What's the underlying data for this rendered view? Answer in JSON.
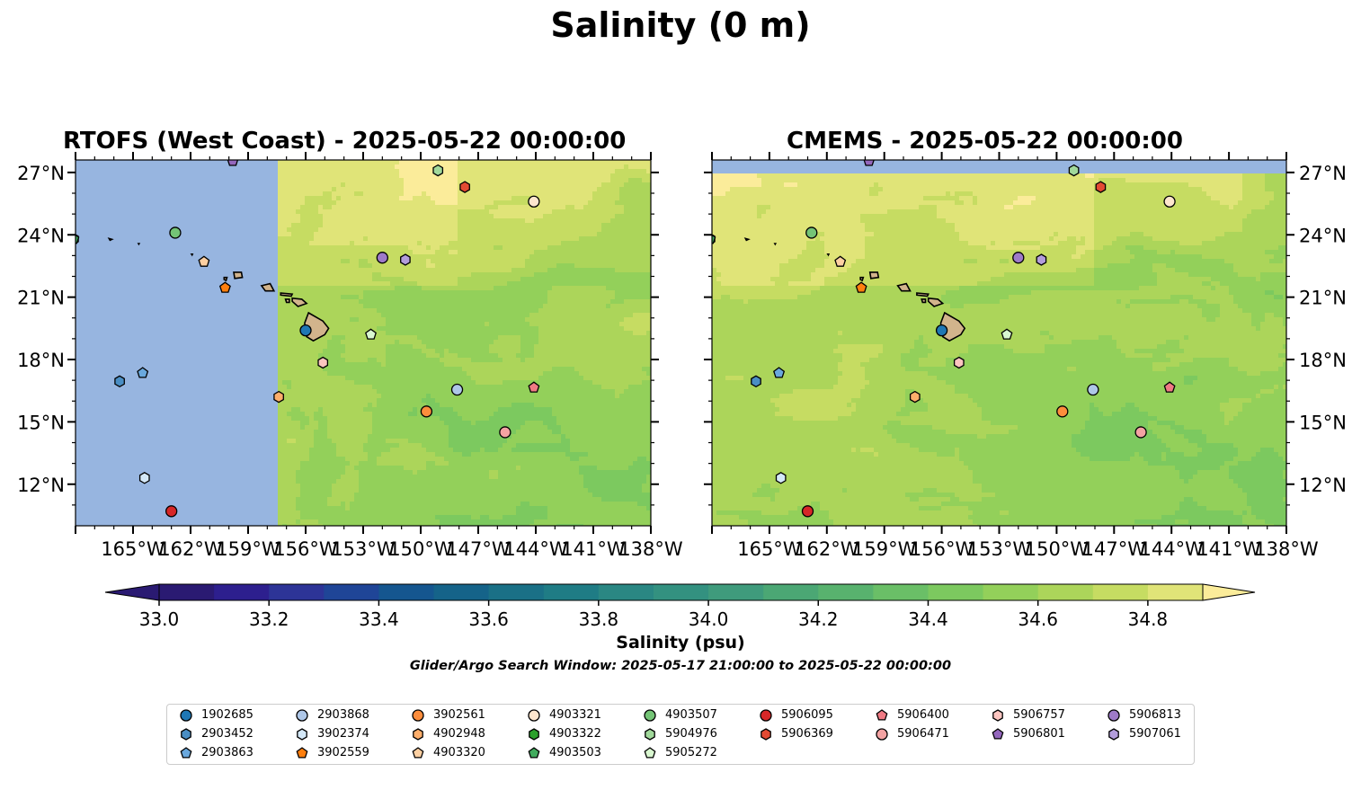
{
  "figure": {
    "suptitle": "Salinity (0 m)",
    "window_note": "Glider/Argo Search Window: 2025-05-17 21:00:00 to 2025-05-22 00:00:00"
  },
  "chart_data": [
    {
      "type": "heatmap",
      "title": "RTOFS (West Coast) - 2025-05-22 00:00:00",
      "description_of_field": "Model covers only east of ~157.5°W; area west shown as land/no-data (blue).",
      "xlim": [
        -168,
        -138
      ],
      "ylim": [
        10,
        27.6
      ],
      "x_ticks": [
        "165°W",
        "162°W",
        "159°W",
        "156°W",
        "153°W",
        "150°W",
        "147°W",
        "144°W",
        "141°W",
        "138°W"
      ],
      "y_ticks": [
        "12°N",
        "15°N",
        "18°N",
        "21°N",
        "24°N",
        "27°N"
      ],
      "ytick_side": "left",
      "grid": false
    },
    {
      "type": "heatmap",
      "title": "CMEMS - 2025-05-22 00:00:00",
      "xlim": [
        -168,
        -138
      ],
      "ylim": [
        10,
        27.6
      ],
      "x_ticks": [
        "165°W",
        "162°W",
        "159°W",
        "156°W",
        "153°W",
        "150°W",
        "147°W",
        "144°W",
        "141°W",
        "138°W"
      ],
      "y_ticks": [
        "12°N",
        "15°N",
        "18°N",
        "21°N",
        "24°N",
        "27°N"
      ],
      "ytick_side": "right",
      "grid": false
    }
  ],
  "colorbar": {
    "label": "Salinity (psu)",
    "range": [
      33.0,
      34.9
    ],
    "levels": 19,
    "ticks": [
      "33.0",
      "33.2",
      "33.4",
      "33.6",
      "33.8",
      "34.0",
      "34.2",
      "34.4",
      "34.6",
      "34.8"
    ],
    "extend": "both"
  },
  "colors": {
    "no_data": "#97b5e0",
    "land": "#d2b48c",
    "cmap": [
      "#2a1a72",
      "#2d1f8e",
      "#2d3497",
      "#1f4597",
      "#15568f",
      "#156389",
      "#1a7086",
      "#1f7c85",
      "#2a8783",
      "#339180",
      "#3f9b7c",
      "#4ba774",
      "#58b26e",
      "#6abf67",
      "#7cc95f",
      "#93d05a",
      "#acd55a",
      "#c6dc62",
      "#e0e478",
      "#fbec9a"
    ]
  },
  "floats": [
    {
      "id": "1902685",
      "color": "#1f77b4",
      "marker": "circle",
      "lon": -156.0,
      "lat": 19.4
    },
    {
      "id": "2903452",
      "color": "#4a8ec4",
      "marker": "hexagon",
      "lon": -165.7,
      "lat": 16.95
    },
    {
      "id": "2903863",
      "color": "#6aa8dd",
      "marker": "pentagon",
      "lon": -164.5,
      "lat": 17.35
    },
    {
      "id": "2903868",
      "color": "#aec7e8",
      "marker": "circle",
      "lon": -148.1,
      "lat": 16.55
    },
    {
      "id": "3902374",
      "color": "#d4e8f8",
      "marker": "hexagon",
      "lon": -164.4,
      "lat": 12.3
    },
    {
      "id": "3902559",
      "color": "#ff7f0e",
      "marker": "pentagon",
      "lon": -160.2,
      "lat": 21.45
    },
    {
      "id": "3902561",
      "color": "#fd8d3c",
      "marker": "circle",
      "lon": -149.7,
      "lat": 15.5
    },
    {
      "id": "4902948",
      "color": "#fdae6b",
      "marker": "hexagon",
      "lon": -157.4,
      "lat": 16.2
    },
    {
      "id": "4903320",
      "color": "#fdd0a2",
      "marker": "pentagon",
      "lon": -161.3,
      "lat": 22.7
    },
    {
      "id": "4903321",
      "color": "#fee6ce",
      "marker": "circle",
      "lon": -144.1,
      "lat": 25.6
    },
    {
      "id": "4903322",
      "color": "#2ca02c",
      "marker": "hexagon",
      "lon": -168.1,
      "lat": 23.8
    },
    {
      "id": "4903503",
      "color": "#41ab5d",
      "marker": "pentagon",
      "lon": -168.1,
      "lat": 23.8
    },
    {
      "id": "4903507",
      "color": "#74c476",
      "marker": "circle",
      "lon": -162.8,
      "lat": 24.1
    },
    {
      "id": "5904976",
      "color": "#a1d99b",
      "marker": "hexagon",
      "lon": -149.1,
      "lat": 27.1
    },
    {
      "id": "5905272",
      "color": "#d9f7d0",
      "marker": "pentagon",
      "lon": -152.6,
      "lat": 19.2
    },
    {
      "id": "5906095",
      "color": "#d62728",
      "marker": "circle",
      "lon": -163.0,
      "lat": 10.7
    },
    {
      "id": "5906369",
      "color": "#e34a33",
      "marker": "hexagon",
      "lon": -147.7,
      "lat": 26.3
    },
    {
      "id": "5906400",
      "color": "#f07a84",
      "marker": "pentagon",
      "lon": -144.1,
      "lat": 16.65
    },
    {
      "id": "5906471",
      "color": "#f4a3a3",
      "marker": "circle",
      "lon": -145.6,
      "lat": 14.5
    },
    {
      "id": "5906757",
      "color": "#fcc5c0",
      "marker": "hexagon",
      "lon": -155.1,
      "lat": 17.85
    },
    {
      "id": "5906801",
      "color": "#9467bd",
      "marker": "pentagon",
      "lon": -159.8,
      "lat": 27.55
    },
    {
      "id": "5906813",
      "color": "#9e7ac8",
      "marker": "circle",
      "lon": -152.0,
      "lat": 22.9
    },
    {
      "id": "5907061",
      "color": "#b39ddb",
      "marker": "hexagon",
      "lon": -150.8,
      "lat": 22.8
    }
  ],
  "legend": {
    "columns": [
      [
        "1902685",
        "2903452",
        "2903863"
      ],
      [
        "2903868",
        "3902374",
        "3902559"
      ],
      [
        "3902561",
        "4902948",
        "4903320"
      ],
      [
        "4903321",
        "4903322",
        "4903503"
      ],
      [
        "4903507",
        "5904976",
        "5905272"
      ],
      [
        "5906095",
        "5906369"
      ],
      [
        "5906400",
        "5906471"
      ],
      [
        "5906757",
        "5906801"
      ],
      [
        "5906813",
        "5907061"
      ]
    ]
  }
}
